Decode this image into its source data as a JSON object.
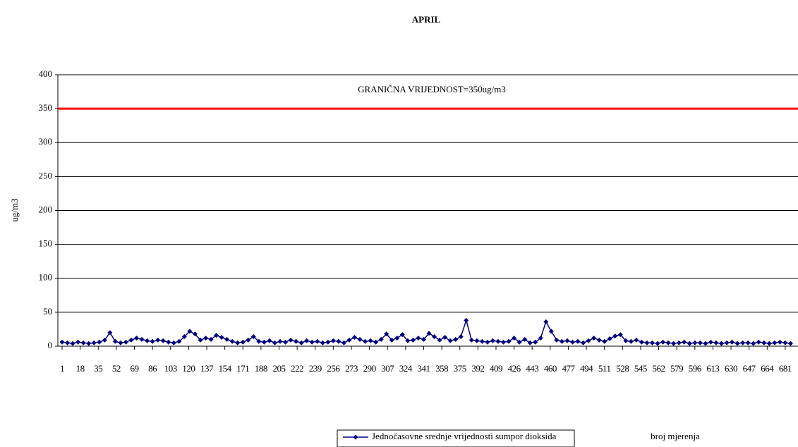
{
  "chart_data": {
    "type": "line",
    "title": "APRIL",
    "y_label": "ug/m3",
    "x_label": "broj mjerenja",
    "annotation": "GRANIČNA VRIJEDNOST=350ug/m3",
    "threshold": 350,
    "threshold_color": "#ff0000",
    "grid": true,
    "legend": "bottom",
    "xlim": [
      -3,
      693
    ],
    "ylim": [
      0,
      400
    ],
    "yticks": [
      0,
      50,
      100,
      150,
      200,
      250,
      300,
      350,
      400
    ],
    "xticks": [
      1,
      18,
      35,
      52,
      69,
      86,
      103,
      120,
      137,
      154,
      171,
      188,
      205,
      222,
      239,
      256,
      273,
      290,
      307,
      324,
      341,
      358,
      375,
      392,
      409,
      426,
      443,
      460,
      477,
      494,
      511,
      528,
      545,
      562,
      579,
      596,
      613,
      630,
      647,
      664,
      681
    ],
    "x": [
      1,
      6,
      11,
      16,
      21,
      26,
      31,
      36,
      41,
      46,
      51,
      56,
      61,
      66,
      71,
      76,
      81,
      86,
      91,
      96,
      101,
      106,
      111,
      116,
      121,
      126,
      131,
      136,
      141,
      146,
      151,
      156,
      161,
      166,
      171,
      176,
      181,
      186,
      191,
      196,
      201,
      206,
      211,
      216,
      221,
      226,
      231,
      236,
      241,
      246,
      251,
      256,
      261,
      266,
      271,
      276,
      281,
      286,
      291,
      296,
      301,
      306,
      311,
      316,
      321,
      326,
      331,
      336,
      341,
      346,
      351,
      356,
      361,
      366,
      371,
      376,
      381,
      386,
      391,
      396,
      401,
      406,
      411,
      416,
      421,
      426,
      431,
      436,
      441,
      446,
      451,
      456,
      461,
      466,
      471,
      476,
      481,
      486,
      491,
      496,
      501,
      506,
      511,
      516,
      521,
      526,
      531,
      536,
      541,
      546,
      551,
      556,
      561,
      566,
      571,
      576,
      581,
      586,
      591,
      596,
      601,
      606,
      611,
      616,
      621,
      626,
      631,
      636,
      641,
      646,
      651,
      656,
      661,
      666,
      671,
      676,
      681,
      686
    ],
    "series": [
      {
        "name": "Jednočasovne srednje vrijednosti sumpor dioksida",
        "color": "#000080",
        "values": [
          6,
          5,
          4,
          6,
          5,
          4,
          5,
          6,
          9,
          20,
          7,
          5,
          6,
          9,
          12,
          10,
          8,
          7,
          9,
          8,
          6,
          5,
          7,
          14,
          22,
          18,
          9,
          12,
          10,
          16,
          13,
          10,
          7,
          5,
          6,
          9,
          14,
          7,
          6,
          8,
          5,
          7,
          6,
          9,
          7,
          5,
          8,
          6,
          7,
          5,
          6,
          8,
          7,
          5,
          9,
          13,
          10,
          7,
          8,
          6,
          10,
          18,
          9,
          12,
          17,
          8,
          9,
          12,
          10,
          19,
          14,
          9,
          13,
          8,
          10,
          14,
          38,
          9,
          8,
          7,
          6,
          8,
          7,
          6,
          7,
          12,
          6,
          10,
          5,
          6,
          12,
          36,
          22,
          9,
          7,
          8,
          6,
          7,
          5,
          8,
          12,
          9,
          7,
          11,
          15,
          17,
          8,
          7,
          9,
          6,
          5,
          5,
          4,
          6,
          5,
          4,
          5,
          6,
          4,
          5,
          5,
          4,
          6,
          5,
          4,
          5,
          6,
          4,
          5,
          5,
          4,
          6,
          5,
          4,
          5,
          6,
          5,
          4
        ]
      }
    ]
  }
}
